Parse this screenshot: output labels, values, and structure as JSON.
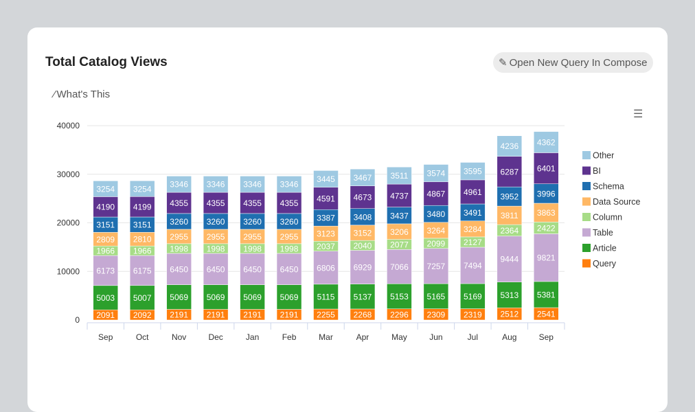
{
  "header": {
    "title": "Total Catalog Views",
    "compose_label": "Open New Query In Compose",
    "whats_this_label": "What's This",
    "compose_icon": "edit-icon",
    "whats_this_icon": "magic-wand-icon",
    "menu_icon": "hamburger-menu-icon"
  },
  "chart_data": {
    "type": "bar",
    "stacked": true,
    "categories": [
      "Sep",
      "Oct",
      "Nov",
      "Dec",
      "Jan",
      "Feb",
      "Mar",
      "Apr",
      "May",
      "Jun",
      "Jul",
      "Aug",
      "Sep"
    ],
    "ylim": [
      0,
      40000
    ],
    "yticks": [
      0,
      10000,
      20000,
      30000,
      40000
    ],
    "grid": true,
    "legend": "right",
    "series": [
      {
        "name": "Query",
        "color": "#ff7f0e",
        "values": [
          2091,
          2092,
          2191,
          2191,
          2191,
          2191,
          2255,
          2268,
          2296,
          2309,
          2319,
          2512,
          2541
        ]
      },
      {
        "name": "Article",
        "color": "#2ca02c",
        "values": [
          5003,
          5007,
          5069,
          5069,
          5069,
          5069,
          5115,
          5137,
          5153,
          5165,
          5169,
          5313,
          5381
        ]
      },
      {
        "name": "Table",
        "color": "#c5a9d3",
        "values": [
          6173,
          6175,
          6450,
          6450,
          6450,
          6450,
          6806,
          6929,
          7066,
          7257,
          7494,
          9444,
          9821
        ]
      },
      {
        "name": "Column",
        "color": "#a7dc87",
        "values": [
          1966,
          1966,
          1998,
          1998,
          1998,
          1998,
          2037,
          2040,
          2077,
          2099,
          2127,
          2364,
          2422
        ]
      },
      {
        "name": "Data Source",
        "color": "#ffb865",
        "values": [
          2809,
          2810,
          2955,
          2955,
          2955,
          2955,
          3123,
          3152,
          3206,
          3264,
          3284,
          3811,
          3863
        ]
      },
      {
        "name": "Schema",
        "color": "#1f6fb0",
        "values": [
          3151,
          3151,
          3260,
          3260,
          3260,
          3260,
          3387,
          3408,
          3437,
          3480,
          3491,
          3952,
          3996
        ]
      },
      {
        "name": "BI",
        "color": "#5e338f",
        "values": [
          4190,
          4199,
          4355,
          4355,
          4355,
          4355,
          4591,
          4673,
          4737,
          4867,
          4961,
          6287,
          6401
        ]
      },
      {
        "name": "Other",
        "color": "#9ec9e2",
        "values": [
          3254,
          3254,
          3346,
          3346,
          3346,
          3346,
          3445,
          3467,
          3511,
          3574,
          3595,
          4236,
          4362
        ]
      }
    ]
  }
}
